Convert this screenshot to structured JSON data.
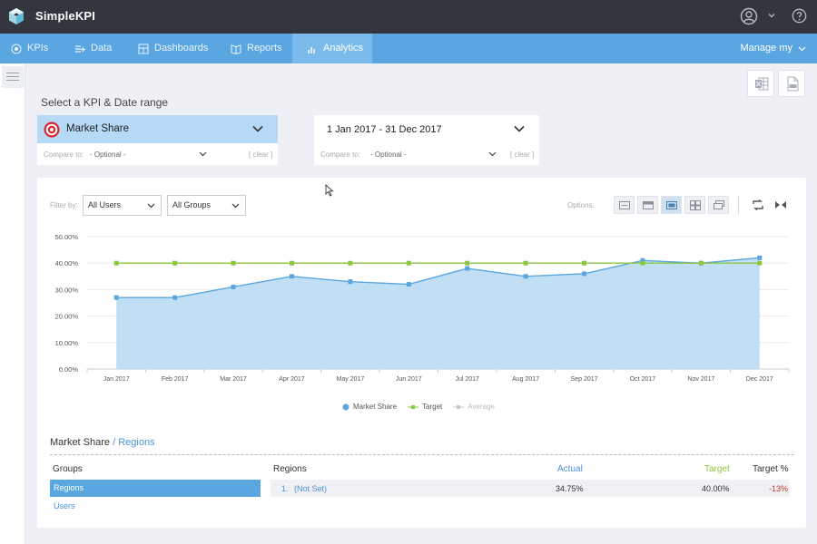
{
  "app": {
    "title": "SimpleKPI"
  },
  "nav": {
    "items": [
      {
        "label": "KPIs",
        "icon": "target-icon"
      },
      {
        "label": "Data",
        "icon": "data-entry-icon"
      },
      {
        "label": "Dashboards",
        "icon": "dashboard-icon"
      },
      {
        "label": "Reports",
        "icon": "reports-icon"
      },
      {
        "label": "Analytics",
        "icon": "analytics-icon",
        "active": true
      }
    ],
    "manage_label": "Manage my"
  },
  "selection": {
    "title": "Select a KPI & Date range",
    "kpi": {
      "label": "Market Share",
      "compare_label": "Compare to:",
      "compare_value": "- Optional -",
      "clear_label": "[ clear ]"
    },
    "date": {
      "label": "1 Jan 2017 - 31 Dec 2017",
      "compare_label": "Compare to:",
      "compare_value": "- Optional -",
      "clear_label": "[ clear ]"
    }
  },
  "filters": {
    "label": "Filter by:",
    "users": "All Users",
    "groups": "All Groups",
    "options_label": "Options:"
  },
  "colors": {
    "actual": "#5aa6e0",
    "area": "#b9dbf4",
    "target": "#8cc63f",
    "average": "#c8c8c8"
  },
  "chart_data": {
    "type": "area",
    "categories": [
      "Jan 2017",
      "Feb 2017",
      "Mar 2017",
      "Apr 2017",
      "May 2017",
      "Jun 2017",
      "Jul 2017",
      "Aug 2017",
      "Sep 2017",
      "Oct 2017",
      "Nov 2017",
      "Dec 2017"
    ],
    "series": [
      {
        "name": "Market Share",
        "values": [
          27,
          27,
          31,
          35,
          33,
          32,
          38,
          35,
          36,
          41,
          40,
          42
        ]
      },
      {
        "name": "Target",
        "values": [
          40,
          40,
          40,
          40,
          40,
          40,
          40,
          40,
          40,
          40,
          40,
          40
        ]
      }
    ],
    "legend": [
      "Market Share",
      "Target",
      "Average"
    ],
    "y_ticks": [
      "0.00%",
      "10.00%",
      "20.00%",
      "30.00%",
      "40.00%",
      "50.00%"
    ],
    "ylim": [
      0,
      50
    ],
    "grid": true,
    "legend_position": "bottom"
  },
  "table": {
    "breadcrumb_main": "Market Share",
    "breadcrumb_sub": " / Regions",
    "groups_header": "Groups",
    "groups": [
      "Regions",
      "Users"
    ],
    "headers": {
      "regions": "Regions",
      "actual": "Actual",
      "target": "Target",
      "target_pct": "Target %"
    },
    "rows": [
      {
        "index": "1.",
        "name": "(Not Set)",
        "actual": "34.75%",
        "target": "40.00%",
        "target_pct": "-13%"
      }
    ]
  }
}
